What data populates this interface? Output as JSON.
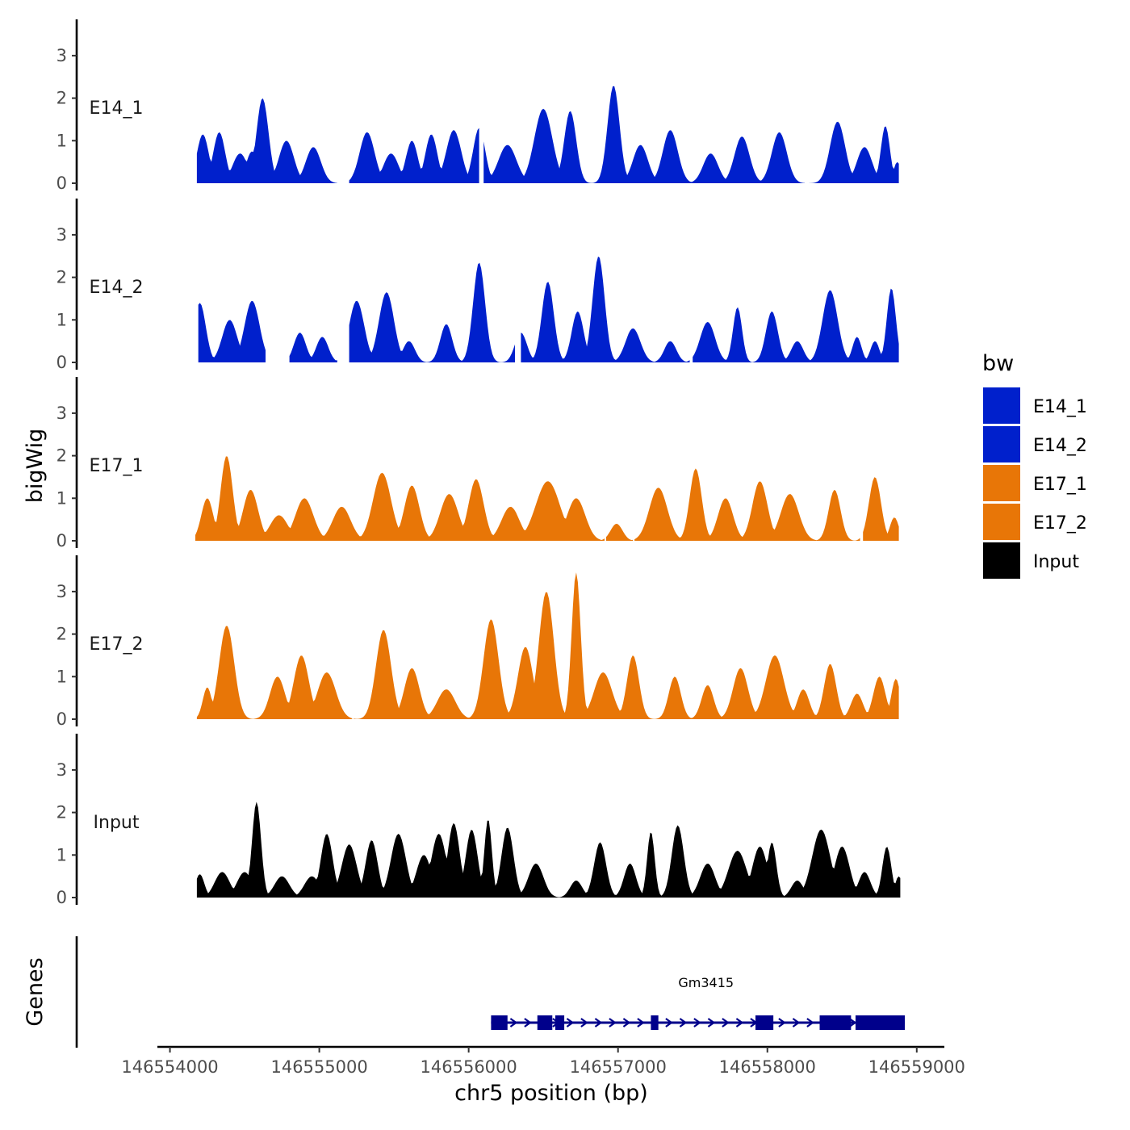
{
  "chart_data": {
    "type": "area",
    "ylabel": "bigWig",
    "xlabel": "chr5 position (bp)",
    "xlim": [
      146553970,
      146559120
    ],
    "x_ticks": [
      146554000,
      146555000,
      146556000,
      146557000,
      146558000,
      146559000
    ],
    "x_tick_labels": [
      "146554000",
      "146555000",
      "146556000",
      "146557000",
      "146558000",
      "146559000"
    ],
    "ylim": [
      0,
      3.7
    ],
    "y_ticks": [
      0,
      1,
      2,
      3
    ],
    "y_tick_labels": [
      "0",
      "1",
      "2",
      "3"
    ],
    "genes_label": "Genes",
    "legend": {
      "title": "bw",
      "entries": [
        {
          "name": "E14_1",
          "color": "#0020CC"
        },
        {
          "name": "E14_2",
          "color": "#0020CC"
        },
        {
          "name": "E17_1",
          "color": "#E87607"
        },
        {
          "name": "E17_2",
          "color": "#E87607"
        },
        {
          "name": "Input",
          "color": "#000000"
        }
      ]
    },
    "series": [
      {
        "name": "E14_1",
        "color": "#0020CC",
        "x_start": 146554180,
        "x_end": 146558880,
        "segments": [
          [
            146554180,
            146555120
          ],
          [
            146555200,
            146556070
          ],
          [
            146556100,
            146558250
          ],
          [
            146558280,
            146558880
          ]
        ],
        "peaks": [
          [
            146554220,
            1.15,
            40
          ],
          [
            146554330,
            1.2,
            40
          ],
          [
            146554470,
            0.7,
            50
          ],
          [
            146554550,
            0.75,
            40
          ],
          [
            146554620,
            2.0,
            40
          ],
          [
            146554780,
            1.0,
            50
          ],
          [
            146554960,
            0.85,
            50
          ],
          [
            146555320,
            1.2,
            50
          ],
          [
            146555480,
            0.7,
            50
          ],
          [
            146555620,
            1.0,
            40
          ],
          [
            146555750,
            1.15,
            40
          ],
          [
            146555900,
            1.25,
            50
          ],
          [
            146556070,
            1.3,
            40
          ],
          [
            146556260,
            0.9,
            60
          ],
          [
            146556500,
            1.75,
            60
          ],
          [
            146556680,
            1.7,
            40
          ],
          [
            146556970,
            2.3,
            40
          ],
          [
            146557150,
            0.9,
            50
          ],
          [
            146557350,
            1.25,
            50
          ],
          [
            146557620,
            0.7,
            50
          ],
          [
            146557830,
            1.1,
            50
          ],
          [
            146558080,
            1.2,
            50
          ],
          [
            146558470,
            1.45,
            50
          ],
          [
            146558650,
            0.85,
            50
          ],
          [
            146558790,
            1.35,
            30
          ],
          [
            146558870,
            0.5,
            25
          ]
        ]
      },
      {
        "name": "E14_2",
        "color": "#0020CC",
        "x_start": 146554190,
        "x_end": 146558880,
        "segments": [
          [
            146554190,
            146554640
          ],
          [
            146554800,
            146555120
          ],
          [
            146555200,
            146556310
          ],
          [
            146556350,
            146557480
          ],
          [
            146557500,
            146558880
          ]
        ],
        "peaks": [
          [
            146554200,
            1.4,
            40
          ],
          [
            146554400,
            1.0,
            50
          ],
          [
            146554550,
            1.45,
            50
          ],
          [
            146554870,
            0.7,
            40
          ],
          [
            146555020,
            0.6,
            40
          ],
          [
            146555250,
            1.45,
            50
          ],
          [
            146555450,
            1.65,
            50
          ],
          [
            146555600,
            0.5,
            40
          ],
          [
            146555850,
            0.9,
            40
          ],
          [
            146556070,
            2.35,
            40
          ],
          [
            146556350,
            0.7,
            40
          ],
          [
            146556530,
            1.9,
            40
          ],
          [
            146556730,
            1.2,
            40
          ],
          [
            146556870,
            2.5,
            40
          ],
          [
            146557100,
            0.8,
            50
          ],
          [
            146557350,
            0.5,
            40
          ],
          [
            146557600,
            0.95,
            50
          ],
          [
            146557800,
            1.3,
            30
          ],
          [
            146558030,
            1.2,
            40
          ],
          [
            146558200,
            0.5,
            40
          ],
          [
            146558420,
            1.7,
            50
          ],
          [
            146558600,
            0.6,
            30
          ],
          [
            146558720,
            0.5,
            30
          ],
          [
            146558830,
            1.75,
            30
          ]
        ]
      },
      {
        "name": "E17_1",
        "color": "#E87607",
        "x_start": 146554170,
        "x_end": 146558880,
        "segments": [
          [
            146554170,
            146556910
          ],
          [
            146556920,
            146557100
          ],
          [
            146557110,
            146558620
          ],
          [
            146558640,
            146558880
          ]
        ],
        "peaks": [
          [
            146554250,
            1.0,
            40
          ],
          [
            146554380,
            2.0,
            40
          ],
          [
            146554540,
            1.2,
            50
          ],
          [
            146554730,
            0.6,
            60
          ],
          [
            146554900,
            1.0,
            60
          ],
          [
            146555150,
            0.8,
            60
          ],
          [
            146555420,
            1.6,
            60
          ],
          [
            146555620,
            1.3,
            50
          ],
          [
            146555870,
            1.1,
            60
          ],
          [
            146556050,
            1.45,
            50
          ],
          [
            146556280,
            0.8,
            60
          ],
          [
            146556530,
            1.4,
            80
          ],
          [
            146556720,
            1.0,
            60
          ],
          [
            146556990,
            0.4,
            40
          ],
          [
            146557270,
            1.25,
            60
          ],
          [
            146557520,
            1.7,
            40
          ],
          [
            146557720,
            1.0,
            50
          ],
          [
            146557950,
            1.4,
            50
          ],
          [
            146558150,
            1.1,
            60
          ],
          [
            146558450,
            1.2,
            40
          ],
          [
            146558720,
            1.5,
            40
          ],
          [
            146558850,
            0.55,
            30
          ]
        ]
      },
      {
        "name": "E17_2",
        "color": "#E87607",
        "x_start": 146554180,
        "x_end": 146558880,
        "segments": [
          [
            146554180,
            146555220
          ],
          [
            146555230,
            146558880
          ]
        ],
        "peaks": [
          [
            146554250,
            0.75,
            30
          ],
          [
            146554380,
            2.2,
            50
          ],
          [
            146554720,
            1.0,
            50
          ],
          [
            146554880,
            1.5,
            50
          ],
          [
            146555050,
            1.1,
            60
          ],
          [
            146555430,
            2.1,
            50
          ],
          [
            146555620,
            1.2,
            50
          ],
          [
            146555850,
            0.7,
            60
          ],
          [
            146556150,
            2.35,
            50
          ],
          [
            146556380,
            1.7,
            50
          ],
          [
            146556520,
            3.0,
            50
          ],
          [
            146556720,
            3.45,
            30
          ],
          [
            146556900,
            1.1,
            60
          ],
          [
            146557100,
            1.5,
            40
          ],
          [
            146557380,
            1.0,
            40
          ],
          [
            146557600,
            0.8,
            40
          ],
          [
            146557820,
            1.2,
            50
          ],
          [
            146558050,
            1.5,
            60
          ],
          [
            146558240,
            0.7,
            40
          ],
          [
            146558420,
            1.3,
            40
          ],
          [
            146558600,
            0.6,
            40
          ],
          [
            146558750,
            1.0,
            40
          ],
          [
            146558860,
            0.95,
            30
          ]
        ]
      },
      {
        "name": "Input",
        "color": "#000000",
        "x_start": 146554180,
        "x_end": 146558890,
        "segments": [
          [
            146554180,
            146558890
          ]
        ],
        "peaks": [
          [
            146554200,
            0.55,
            30
          ],
          [
            146554350,
            0.6,
            50
          ],
          [
            146554500,
            0.6,
            50
          ],
          [
            146554580,
            2.25,
            30
          ],
          [
            146554750,
            0.5,
            50
          ],
          [
            146554950,
            0.5,
            50
          ],
          [
            146555050,
            1.5,
            40
          ],
          [
            146555200,
            1.25,
            50
          ],
          [
            146555350,
            1.35,
            40
          ],
          [
            146555530,
            1.5,
            50
          ],
          [
            146555700,
            1.0,
            50
          ],
          [
            146555800,
            1.5,
            50
          ],
          [
            146555900,
            1.75,
            40
          ],
          [
            146556020,
            1.6,
            40
          ],
          [
            146556130,
            1.85,
            25
          ],
          [
            146556260,
            1.65,
            40
          ],
          [
            146556450,
            0.8,
            50
          ],
          [
            146556720,
            0.4,
            40
          ],
          [
            146556880,
            1.3,
            40
          ],
          [
            146557080,
            0.8,
            40
          ],
          [
            146557220,
            1.55,
            25
          ],
          [
            146557400,
            1.7,
            40
          ],
          [
            146557600,
            0.8,
            50
          ],
          [
            146557800,
            1.1,
            60
          ],
          [
            146557950,
            1.2,
            50
          ],
          [
            146558030,
            1.3,
            30
          ],
          [
            146558200,
            0.4,
            40
          ],
          [
            146558360,
            1.6,
            60
          ],
          [
            146558500,
            1.2,
            50
          ],
          [
            146558650,
            0.6,
            40
          ],
          [
            146558800,
            1.2,
            30
          ],
          [
            146558880,
            0.5,
            25
          ]
        ]
      }
    ],
    "gene": {
      "name": "Gm3415",
      "start": 146556150,
      "end": 146558920,
      "strand": "+",
      "color": "#00008B",
      "exons": [
        [
          146556150,
          146556260
        ],
        [
          146556460,
          146556560
        ],
        [
          146556580,
          146556640
        ],
        [
          146557220,
          146557270
        ],
        [
          146557920,
          146558040
        ],
        [
          146558350,
          146558560
        ],
        [
          146558590,
          146558920
        ]
      ]
    }
  }
}
